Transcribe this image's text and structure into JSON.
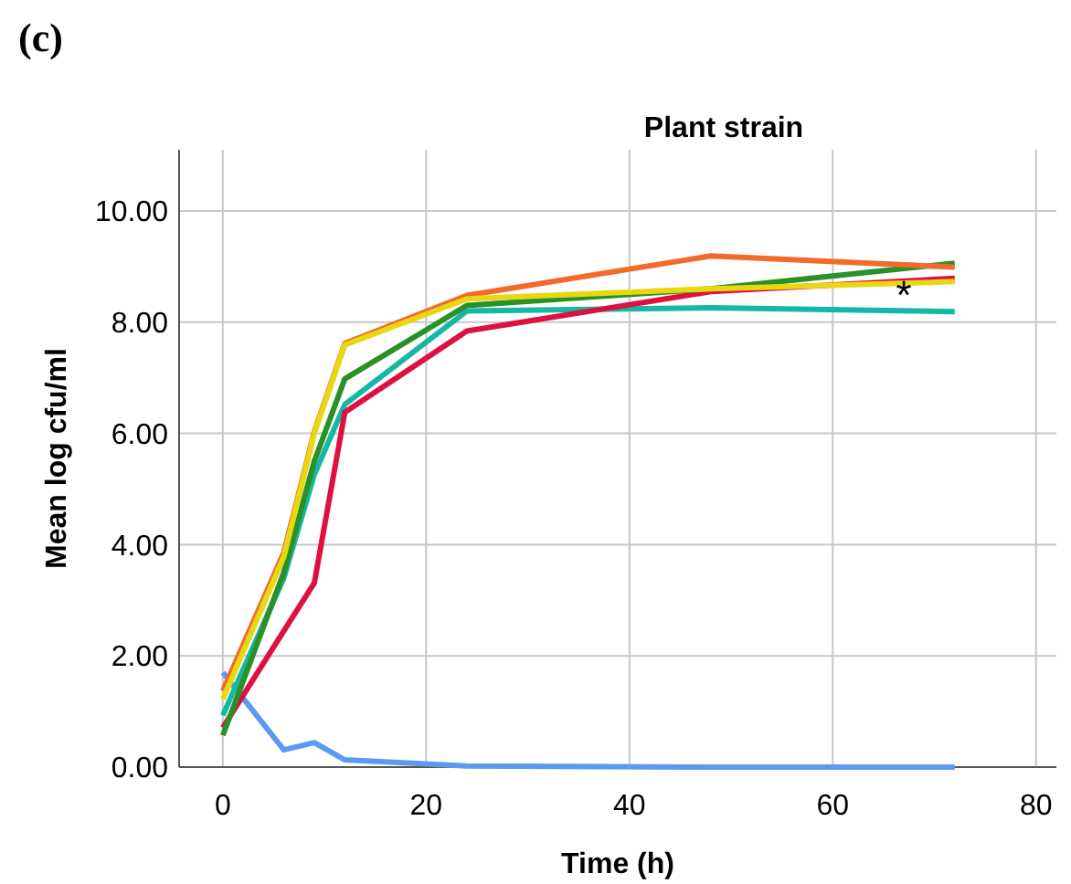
{
  "chart_data": {
    "type": "line",
    "legend_title": "Plant strain",
    "xlabel": "Time (h)",
    "ylabel": "Mean log cfu/ml",
    "x": [
      0,
      6,
      9,
      12,
      24,
      48,
      72
    ],
    "series": [
      {
        "color": "#5b9bef",
        "values": [
          1.7,
          0.31,
          0.44,
          0.13,
          0.02,
          0,
          0
        ]
      },
      {
        "color": "#16b8a4",
        "values": [
          0.93,
          3.4,
          5.26,
          6.52,
          8.2,
          8.26,
          8.19
        ]
      },
      {
        "color": "#de1040",
        "values": [
          0.71,
          2.45,
          3.31,
          6.38,
          7.84,
          8.55,
          8.79
        ]
      },
      {
        "color": "#2a9128",
        "values": [
          0.57,
          3.5,
          5.5,
          6.98,
          8.3,
          8.6,
          9.06
        ]
      },
      {
        "color": "#f26b2b",
        "values": [
          1.37,
          3.86,
          6.03,
          7.62,
          8.48,
          9.19,
          8.99
        ]
      },
      {
        "color": "#e8d812",
        "values": [
          1.22,
          3.78,
          6.0,
          7.59,
          8.42,
          8.6,
          8.73
        ]
      }
    ],
    "xlim": [
      -4.3,
      82
    ],
    "ylim": [
      0,
      11.1
    ],
    "xticks": [
      0,
      20,
      40,
      60,
      80
    ],
    "yticks": [
      {
        "value": 0,
        "label": "0.00"
      },
      {
        "value": 2,
        "label": "2.00"
      },
      {
        "value": 4,
        "label": "4.00"
      },
      {
        "value": 6,
        "label": "6.00"
      },
      {
        "value": 8,
        "label": "8.00"
      },
      {
        "value": 10,
        "label": "10.00"
      }
    ],
    "grid": true,
    "line_style": "solid",
    "marker": "none",
    "annotations": [
      "(c)",
      {
        "text": "*",
        "x": 67,
        "y": 8.75
      }
    ]
  }
}
